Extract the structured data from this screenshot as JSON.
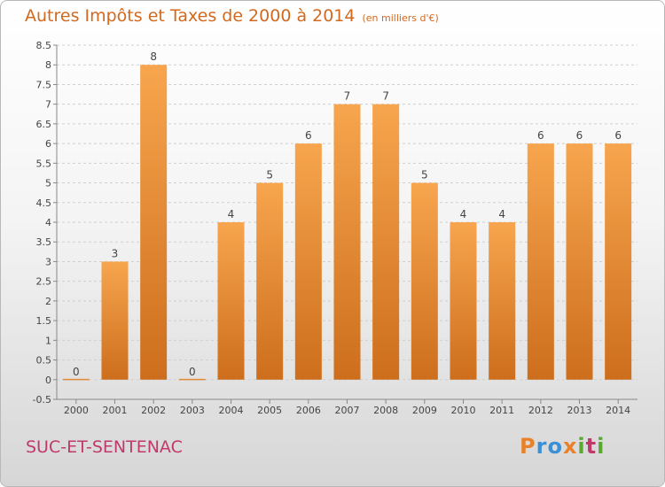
{
  "title": "Autres Impôts et Taxes de 2000 à 2014",
  "title_unit": "(en milliers d'€)",
  "place": "SUC-ET-SENTENAC",
  "logo_letters": [
    "P",
    "r",
    "o",
    "x",
    "i",
    "t",
    "i"
  ],
  "logo_colors": [
    "#e8812a",
    "#3a8fd6",
    "#3a8fd6",
    "#e8812a",
    "#5aa832",
    "#c0396a",
    "#5aa832"
  ],
  "colors": {
    "title": "#d2691e",
    "place": "#c0396a",
    "bar_light": "#f7a54e",
    "bar_dark": "#cd6e1c"
  },
  "chart_data": {
    "type": "bar",
    "categories": [
      "2000",
      "2001",
      "2002",
      "2003",
      "2004",
      "2005",
      "2006",
      "2007",
      "2008",
      "2009",
      "2010",
      "2011",
      "2012",
      "2013",
      "2014"
    ],
    "values": [
      0,
      3,
      8,
      0,
      4,
      5,
      6,
      7,
      7,
      5,
      4,
      4,
      6,
      6,
      6
    ],
    "data_labels": [
      "0",
      "3",
      "8",
      "0",
      "4",
      "5",
      "6",
      "7",
      "7",
      "5",
      "4",
      "4",
      "6",
      "6",
      "6"
    ],
    "ylim": [
      -0.5,
      8.5
    ],
    "yticks": [
      "-0.5",
      "0",
      "0.5",
      "1",
      "1.5",
      "2",
      "2.5",
      "3",
      "3.5",
      "4",
      "4.5",
      "5",
      "5.5",
      "6",
      "6.5",
      "7",
      "7.5",
      "8",
      "8.5"
    ],
    "grid": true
  }
}
